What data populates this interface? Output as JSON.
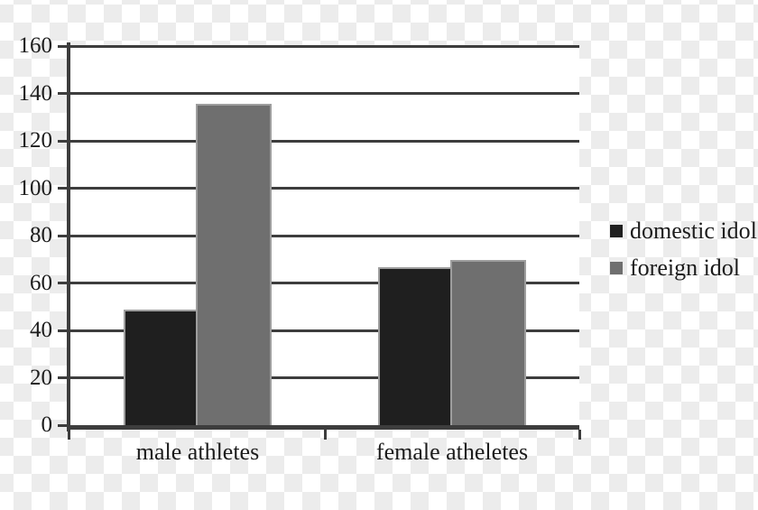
{
  "chart_data": {
    "type": "bar",
    "categories": [
      "male athletes",
      "female atheletes"
    ],
    "series": [
      {
        "name": "domestic idol",
        "color": "#1f1f1f",
        "values": [
          48,
          66
        ]
      },
      {
        "name": "foreign idol",
        "color": "#6f6f6f",
        "values": [
          135,
          69
        ]
      }
    ],
    "title": "",
    "xlabel": "",
    "ylabel": "",
    "ylim": [
      0,
      160
    ],
    "ytick_step": 20,
    "yticks": [
      0,
      20,
      40,
      60,
      80,
      100,
      120,
      140,
      160
    ],
    "grid": true,
    "legend_position": "right"
  },
  "style": {
    "axis_color": "#3d3d3d",
    "bar_border_color": "#9e9e9e",
    "text_color": "#1c1c1c",
    "plot_background": "#ffffff",
    "checker_color": "#ececec"
  }
}
